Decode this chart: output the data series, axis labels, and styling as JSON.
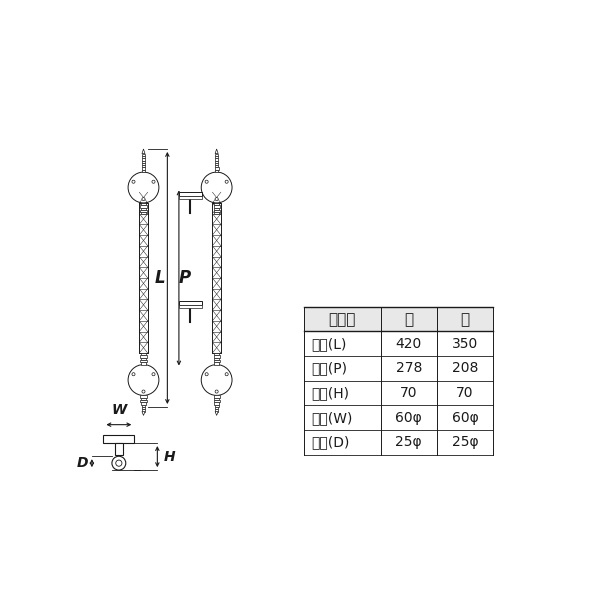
{
  "bg_color": "#ffffff",
  "line_color": "#1a1a1a",
  "table_header": [
    "サイズ",
    "大",
    "小"
  ],
  "table_rows": [
    [
      "全長(L)",
      "420",
      "350"
    ],
    [
      "足巾(P)",
      "278",
      "208"
    ],
    [
      "高サ(H)",
      "70",
      "70"
    ],
    [
      "座巾(W)",
      "60φ",
      "60φ"
    ],
    [
      "径　(D)",
      "25φ",
      "25φ"
    ]
  ],
  "dim_label_L": "L",
  "dim_label_P": "P",
  "dim_label_W": "W",
  "dim_label_H": "H",
  "dim_label_D": "D"
}
